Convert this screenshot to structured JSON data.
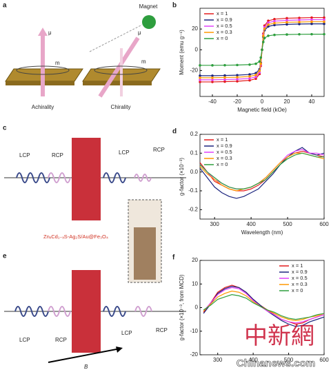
{
  "panels": {
    "a": {
      "label": "a",
      "magnet": "Magnet",
      "mu1": "μ",
      "m1": "m",
      "mu2": "μ",
      "m2": "m",
      "left": "Achirality",
      "right": "Chirality"
    },
    "c": {
      "label": "c",
      "lcp1": "LCP",
      "rcp1": "RCP",
      "lcp2": "LCP",
      "rcp2": "RCP",
      "material": "ZnₓCd₁₋ₓS-Ag₂S/Au@Fe₃O₄"
    },
    "e": {
      "label": "e",
      "lcp1": "LCP",
      "rcp1": "RCP",
      "lcp2": "LCP",
      "rcp2": "RCP",
      "field": "B"
    }
  },
  "watermark": {
    "logo": "中新網",
    "site": "Chinanews.com"
  },
  "chart_data": [
    {
      "type": "line",
      "panel": "b",
      "markers": true,
      "x_label": "Magnetic field (kOe)",
      "y_label": "Moment (emu g⁻¹)",
      "x": [
        -50,
        -40,
        -30,
        -20,
        -10,
        -5,
        -2,
        -1,
        0,
        1,
        2,
        5,
        10,
        20,
        30,
        40,
        50
      ],
      "xlim": [
        -50,
        50
      ],
      "xticks": [
        -40,
        -20,
        0,
        20,
        40
      ],
      "ylim": [
        -45,
        40
      ],
      "yticks": [
        -20,
        0,
        20
      ],
      "series": [
        {
          "name": "x = 1",
          "color": "#e41a1c",
          "values": [
            -31,
            -31,
            -30.7,
            -30.4,
            -29.5,
            -27.9,
            -23.3,
            -15.5,
            0,
            15.5,
            23.3,
            27.9,
            29.5,
            30.4,
            30.7,
            31,
            31
          ]
        },
        {
          "name": "x = 0.9",
          "color": "#1a237e",
          "values": [
            -25,
            -25,
            -24.8,
            -24.5,
            -23.8,
            -22.5,
            -18.8,
            -12.5,
            0,
            12.5,
            18.8,
            22.5,
            23.8,
            24.5,
            24.8,
            25,
            25
          ]
        },
        {
          "name": "x = 0.5",
          "color": "#e040fb",
          "values": [
            -29,
            -29,
            -28.7,
            -28.4,
            -27.6,
            -26.1,
            -21.8,
            -14.5,
            0,
            14.5,
            21.8,
            26.1,
            27.6,
            28.4,
            28.7,
            29,
            29
          ]
        },
        {
          "name": "x = 0.3",
          "color": "#ff9800",
          "values": [
            -27,
            -27,
            -26.7,
            -26.5,
            -25.7,
            -24.3,
            -20.3,
            -13.5,
            0,
            13.5,
            20.3,
            24.3,
            25.7,
            26.5,
            26.7,
            27,
            27
          ]
        },
        {
          "name": "x = 0",
          "color": "#2e9e3e",
          "values": [
            -15,
            -15,
            -14.9,
            -14.7,
            -14.3,
            -13.5,
            -11.3,
            -7.5,
            0,
            7.5,
            11.3,
            13.5,
            14.3,
            14.7,
            14.9,
            15,
            15
          ]
        }
      ]
    },
    {
      "type": "line",
      "panel": "d",
      "markers": false,
      "x_label": "Wavelength (nm)",
      "y_label": "g-factor (×10⁻³)",
      "x": [
        260,
        280,
        300,
        320,
        340,
        360,
        380,
        400,
        420,
        440,
        460,
        480,
        500,
        520,
        540,
        560,
        580,
        600
      ],
      "xlim": [
        260,
        600
      ],
      "xticks": [
        300,
        400,
        500,
        600
      ],
      "ylim": [
        -0.25,
        0.2
      ],
      "yticks": [
        -0.2,
        -0.1,
        {
          "value": 0,
          "label": "0.0"
        },
        0.1,
        0.2
      ],
      "series": [
        {
          "name": "x = 1",
          "color": "#e41a1c",
          "values": [
            0.05,
            0.0,
            -0.05,
            -0.07,
            -0.09,
            -0.1,
            -0.1,
            -0.09,
            -0.07,
            -0.04,
            0.0,
            0.04,
            0.08,
            0.1,
            0.11,
            0.1,
            0.09,
            0.08
          ]
        },
        {
          "name": "x = 0.9",
          "color": "#1a237e",
          "values": [
            0.02,
            -0.03,
            -0.08,
            -0.11,
            -0.13,
            -0.14,
            -0.13,
            -0.11,
            -0.09,
            -0.05,
            -0.01,
            0.04,
            0.08,
            0.11,
            0.13,
            0.1,
            0.09,
            0.1
          ]
        },
        {
          "name": "x = 0.5",
          "color": "#e040fb",
          "values": [
            0.04,
            0.0,
            -0.04,
            -0.06,
            -0.08,
            -0.09,
            -0.09,
            -0.08,
            -0.06,
            -0.03,
            0.01,
            0.05,
            0.09,
            0.11,
            0.12,
            0.1,
            0.1,
            0.09
          ]
        },
        {
          "name": "x = 0.3",
          "color": "#ff9800",
          "values": [
            0.03,
            -0.01,
            -0.04,
            -0.07,
            -0.09,
            -0.1,
            -0.09,
            -0.08,
            -0.06,
            -0.03,
            0.01,
            0.05,
            0.08,
            0.1,
            0.1,
            0.09,
            0.08,
            0.07
          ]
        },
        {
          "name": "x = 0",
          "color": "#2e9e3e",
          "values": [
            0.04,
            0.0,
            -0.03,
            -0.06,
            -0.08,
            -0.09,
            -0.09,
            -0.08,
            -0.06,
            -0.04,
            0.0,
            0.04,
            0.07,
            0.09,
            0.1,
            0.09,
            0.08,
            0.08
          ]
        }
      ]
    },
    {
      "type": "line",
      "panel": "f",
      "markers": false,
      "y_label": "g-factor (×10⁻³, from MCD)",
      "x": [
        260,
        280,
        300,
        320,
        340,
        360,
        380,
        400,
        420,
        440,
        460,
        480,
        500,
        520,
        540,
        560,
        580,
        600
      ],
      "xlim": [
        250,
        600
      ],
      "xticks": [
        300,
        400,
        500,
        600
      ],
      "ylim": [
        -20,
        20
      ],
      "yticks": [
        -20,
        -10,
        0,
        10,
        20
      ],
      "series": [
        {
          "name": "x = 1",
          "color": "#e41a1c",
          "values": [
            -2,
            2,
            6.5,
            8.5,
            9.5,
            8.5,
            6.5,
            3.5,
            1,
            -1,
            -3,
            -5,
            -6,
            -7,
            -6.5,
            -5,
            -4,
            -3
          ]
        },
        {
          "name": "x = 0.9",
          "color": "#1a237e",
          "values": [
            -2.5,
            1.5,
            6,
            8,
            9,
            8.5,
            6.5,
            3.5,
            1,
            -1.5,
            -3.5,
            -5.5,
            -7,
            -8,
            -7.5,
            -6,
            -5,
            -4
          ]
        },
        {
          "name": "x = 0.5",
          "color": "#e040fb",
          "values": [
            -1.5,
            2,
            5.5,
            7.5,
            8.5,
            8,
            6,
            3,
            0.5,
            -1.5,
            -3,
            -5,
            -6,
            -6.5,
            -6,
            -5,
            -4,
            -3
          ]
        },
        {
          "name": "x = 0.3",
          "color": "#ff9800",
          "values": [
            -1.5,
            1.5,
            4.5,
            6,
            7,
            6.5,
            5,
            2.5,
            0.5,
            -1,
            -2.5,
            -4,
            -5,
            -5.5,
            -5,
            -4,
            -3.5,
            -2.5
          ]
        },
        {
          "name": "x = 0",
          "color": "#2e9e3e",
          "values": [
            -1,
            1,
            3.5,
            4.5,
            5.5,
            5,
            4,
            2,
            0.5,
            -1,
            -2,
            -3.5,
            -4.5,
            -5,
            -4.5,
            -4,
            -3,
            -2.5
          ]
        }
      ]
    }
  ]
}
